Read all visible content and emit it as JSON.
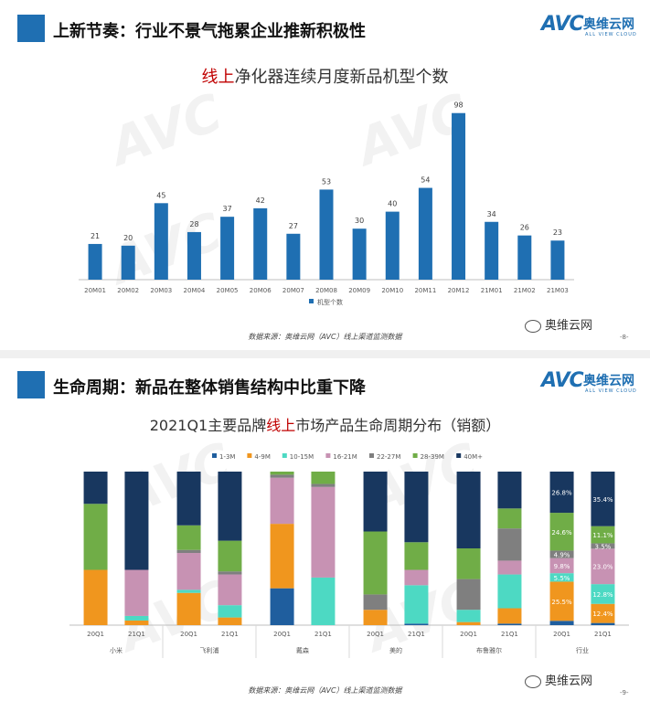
{
  "colors": {
    "brand": "#1f6fb2",
    "highlight": "#c00000"
  },
  "logo": {
    "mark": "AVC",
    "name_cn": "奥维云网",
    "name_en": "ALL VIEW CLOUD"
  },
  "wechat": {
    "label": "奥维云网",
    "icon": "wechat-icon"
  },
  "panel1": {
    "header": "上新节奏：行业不景气拖累企业推新积极性",
    "title_highlight": "线上",
    "title_rest": "净化器连续月度新品机型个数",
    "source": "数据来源：奥维云网（AVC）线上渠道监测数据",
    "page": "-8-"
  },
  "panel2": {
    "header": "生命周期：新品在整体销售结构中比重下降",
    "title_pre": "2021Q1主要品牌",
    "title_highlight": "线上",
    "title_post": "市场产品生命周期分布（销额）",
    "source": "数据来源：奥维云网（AVC）线上渠道监测数据",
    "page": "-9-"
  },
  "chart_data": [
    {
      "type": "bar",
      "categories": [
        "20M01",
        "20M02",
        "20M03",
        "20M04",
        "20M05",
        "20M06",
        "20M07",
        "20M08",
        "20M09",
        "20M10",
        "20M11",
        "20M12",
        "21M01",
        "21M02",
        "21M03"
      ],
      "series": [
        {
          "name": "机型个数",
          "values": [
            21,
            20,
            45,
            28,
            37,
            42,
            27,
            53,
            30,
            40,
            54,
            98,
            34,
            26,
            23
          ],
          "color": "#1f6fb2"
        }
      ],
      "ylim": [
        0,
        100
      ],
      "data_labels": true,
      "legend": "bottom",
      "grid": false
    },
    {
      "type": "bar",
      "stacked": "percent",
      "legend": "top",
      "categories_groups": [
        {
          "brand": "小米",
          "periods": [
            "20Q1",
            "21Q1"
          ]
        },
        {
          "brand": "飞利浦",
          "periods": [
            "20Q1",
            "21Q1"
          ]
        },
        {
          "brand": "戴森",
          "periods": [
            "20Q1",
            "21Q1"
          ]
        },
        {
          "brand": "美的",
          "periods": [
            "20Q1",
            "21Q1"
          ]
        },
        {
          "brand": "布鲁雅尔",
          "periods": [
            "20Q1",
            "21Q1"
          ]
        },
        {
          "brand": "行业",
          "periods": [
            "20Q1",
            "21Q1"
          ]
        }
      ],
      "series": [
        {
          "name": "1-3M",
          "color": "#1f5e9e",
          "values": [
            0,
            0,
            0,
            0,
            24,
            0,
            0,
            1,
            0,
            1,
            2.8,
            1.4
          ]
        },
        {
          "name": "4-9M",
          "color": "#f0961e",
          "values": [
            36,
            3,
            21,
            5,
            42,
            0,
            10,
            0,
            2,
            10,
            25.5,
            12.4
          ]
        },
        {
          "name": "10-15M",
          "color": "#4dd9c3",
          "values": [
            0,
            3,
            2,
            8,
            0,
            31,
            0,
            25,
            8,
            22,
            5.5,
            12.8
          ]
        },
        {
          "name": "16-21M",
          "color": "#c792b3",
          "values": [
            0,
            30,
            24,
            20,
            30,
            59,
            0,
            10,
            0,
            9,
            9.8,
            23.0
          ]
        },
        {
          "name": "22-27M",
          "color": "#7f7f7f",
          "values": [
            0,
            0,
            2,
            2,
            2,
            2,
            10,
            0,
            20,
            21,
            4.9,
            3.5
          ]
        },
        {
          "name": "28-39M",
          "color": "#70ad47",
          "values": [
            43,
            0,
            16,
            20,
            2,
            8,
            41,
            18,
            20,
            13,
            24.6,
            11.1
          ]
        },
        {
          "name": "40M+",
          "color": "#18375f",
          "values": [
            21,
            64,
            35,
            45,
            0,
            0,
            39,
            46,
            50,
            24,
            26.8,
            35.4
          ]
        }
      ],
      "data_labels": {
        "group": "行业",
        "labels": [
          [
            "",
            "25.5%",
            "5.5%",
            "9.8%",
            "4.9%",
            "24.6%",
            "26.8%"
          ],
          [
            "",
            "12.4%",
            "12.8%",
            "23.0%",
            "3.5%",
            "11.1%",
            "35.4%"
          ]
        ]
      }
    }
  ]
}
